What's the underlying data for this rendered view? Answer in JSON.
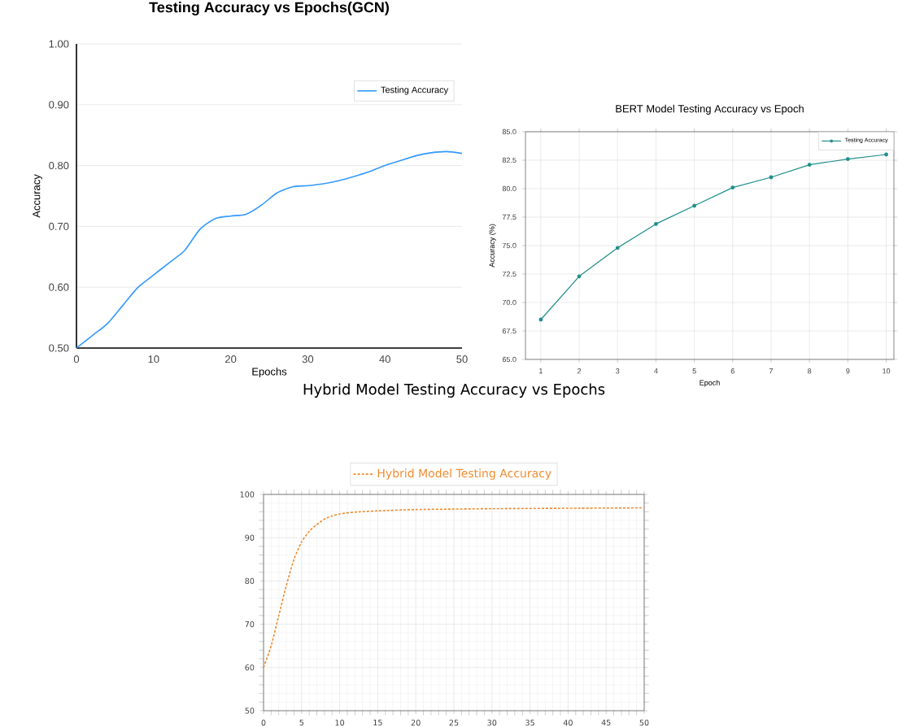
{
  "chart_data": [
    {
      "type": "line",
      "title": "Testing Accuracy vs Epochs(GCN)",
      "xlabel": "Epochs",
      "ylabel": "Accuracy",
      "x": [
        0,
        2,
        4,
        6,
        8,
        10,
        12,
        14,
        16,
        18,
        20,
        22,
        24,
        26,
        28,
        30,
        32,
        34,
        36,
        38,
        40,
        42,
        44,
        46,
        48,
        50
      ],
      "series": [
        {
          "name": "Testing Accuracy",
          "color": "#3399ff",
          "values": [
            0.5,
            0.52,
            0.54,
            0.57,
            0.6,
            0.62,
            0.64,
            0.66,
            0.695,
            0.713,
            0.717,
            0.72,
            0.735,
            0.755,
            0.765,
            0.767,
            0.77,
            0.775,
            0.782,
            0.79,
            0.8,
            0.808,
            0.816,
            0.821,
            0.823,
            0.82
          ]
        }
      ],
      "xlim": [
        0,
        50
      ],
      "ylim": [
        0.5,
        1.0
      ],
      "xticks": [
        0,
        10,
        20,
        30,
        40,
        50
      ],
      "yticks": [
        {
          "value": 0.5,
          "label": "0.50"
        },
        {
          "value": 0.6,
          "label": "0.60"
        },
        {
          "value": 0.7,
          "label": "0.70"
        },
        {
          "value": 0.8,
          "label": "0.80"
        },
        {
          "value": 0.9,
          "label": "0.90"
        },
        {
          "value": 1.0,
          "label": "1.00"
        }
      ],
      "grid": "y",
      "legend": "top right",
      "marker": "none",
      "line_style": "solid"
    },
    {
      "type": "line",
      "title": "BERT Model Testing Accuracy vs Epoch",
      "xlabel": "Epoch",
      "ylabel": "Accuracy (%)",
      "x": [
        1,
        2,
        3,
        4,
        5,
        6,
        7,
        8,
        9,
        10
      ],
      "series": [
        {
          "name": "Testing Accuracy",
          "color": "#1f8f8a",
          "values": [
            68.5,
            72.3,
            74.8,
            76.9,
            78.5,
            80.1,
            81.0,
            82.1,
            82.6,
            83.0
          ]
        }
      ],
      "xlim": [
        0.6,
        10.2
      ],
      "ylim": [
        65,
        85
      ],
      "xticks": [
        1,
        2,
        3,
        4,
        5,
        6,
        7,
        8,
        9,
        10
      ],
      "yticks": [
        {
          "value": 65,
          "label": "65.0"
        },
        {
          "value": 67.5,
          "label": "67.5"
        },
        {
          "value": 70,
          "label": "70.0"
        },
        {
          "value": 72.5,
          "label": "72.5"
        },
        {
          "value": 75,
          "label": "75.0"
        },
        {
          "value": 77.5,
          "label": "77.5"
        },
        {
          "value": 80,
          "label": "80.0"
        },
        {
          "value": 82.5,
          "label": "82.5"
        },
        {
          "value": 85,
          "label": "85.0"
        }
      ],
      "grid": true,
      "legend": "top right",
      "marker": "circle",
      "line_style": "solid"
    },
    {
      "type": "line",
      "title": "Hybrid Model Testing Accuracy vs Epochs",
      "x": [
        0,
        1,
        2,
        3,
        4,
        5,
        6,
        7,
        8,
        9,
        10,
        12,
        15,
        20,
        25,
        30,
        40,
        50
      ],
      "series": [
        {
          "name": "Hybrid Model Testing Accuracy",
          "color": "#f08a2c",
          "values": [
            60,
            65,
            72,
            79,
            85,
            89,
            91.5,
            93,
            94.3,
            95,
            95.5,
            95.9,
            96.2,
            96.5,
            96.6,
            96.7,
            96.8,
            96.9
          ]
        }
      ],
      "xlim": [
        0,
        50
      ],
      "ylim": [
        50,
        100
      ],
      "xticks": [
        0,
        5,
        10,
        15,
        20,
        25,
        30,
        35,
        40,
        45,
        50
      ],
      "yticks": [
        50,
        60,
        70,
        80,
        90,
        100
      ],
      "grid": true,
      "legend": "top",
      "marker": "none",
      "line_style": "dashed"
    }
  ]
}
